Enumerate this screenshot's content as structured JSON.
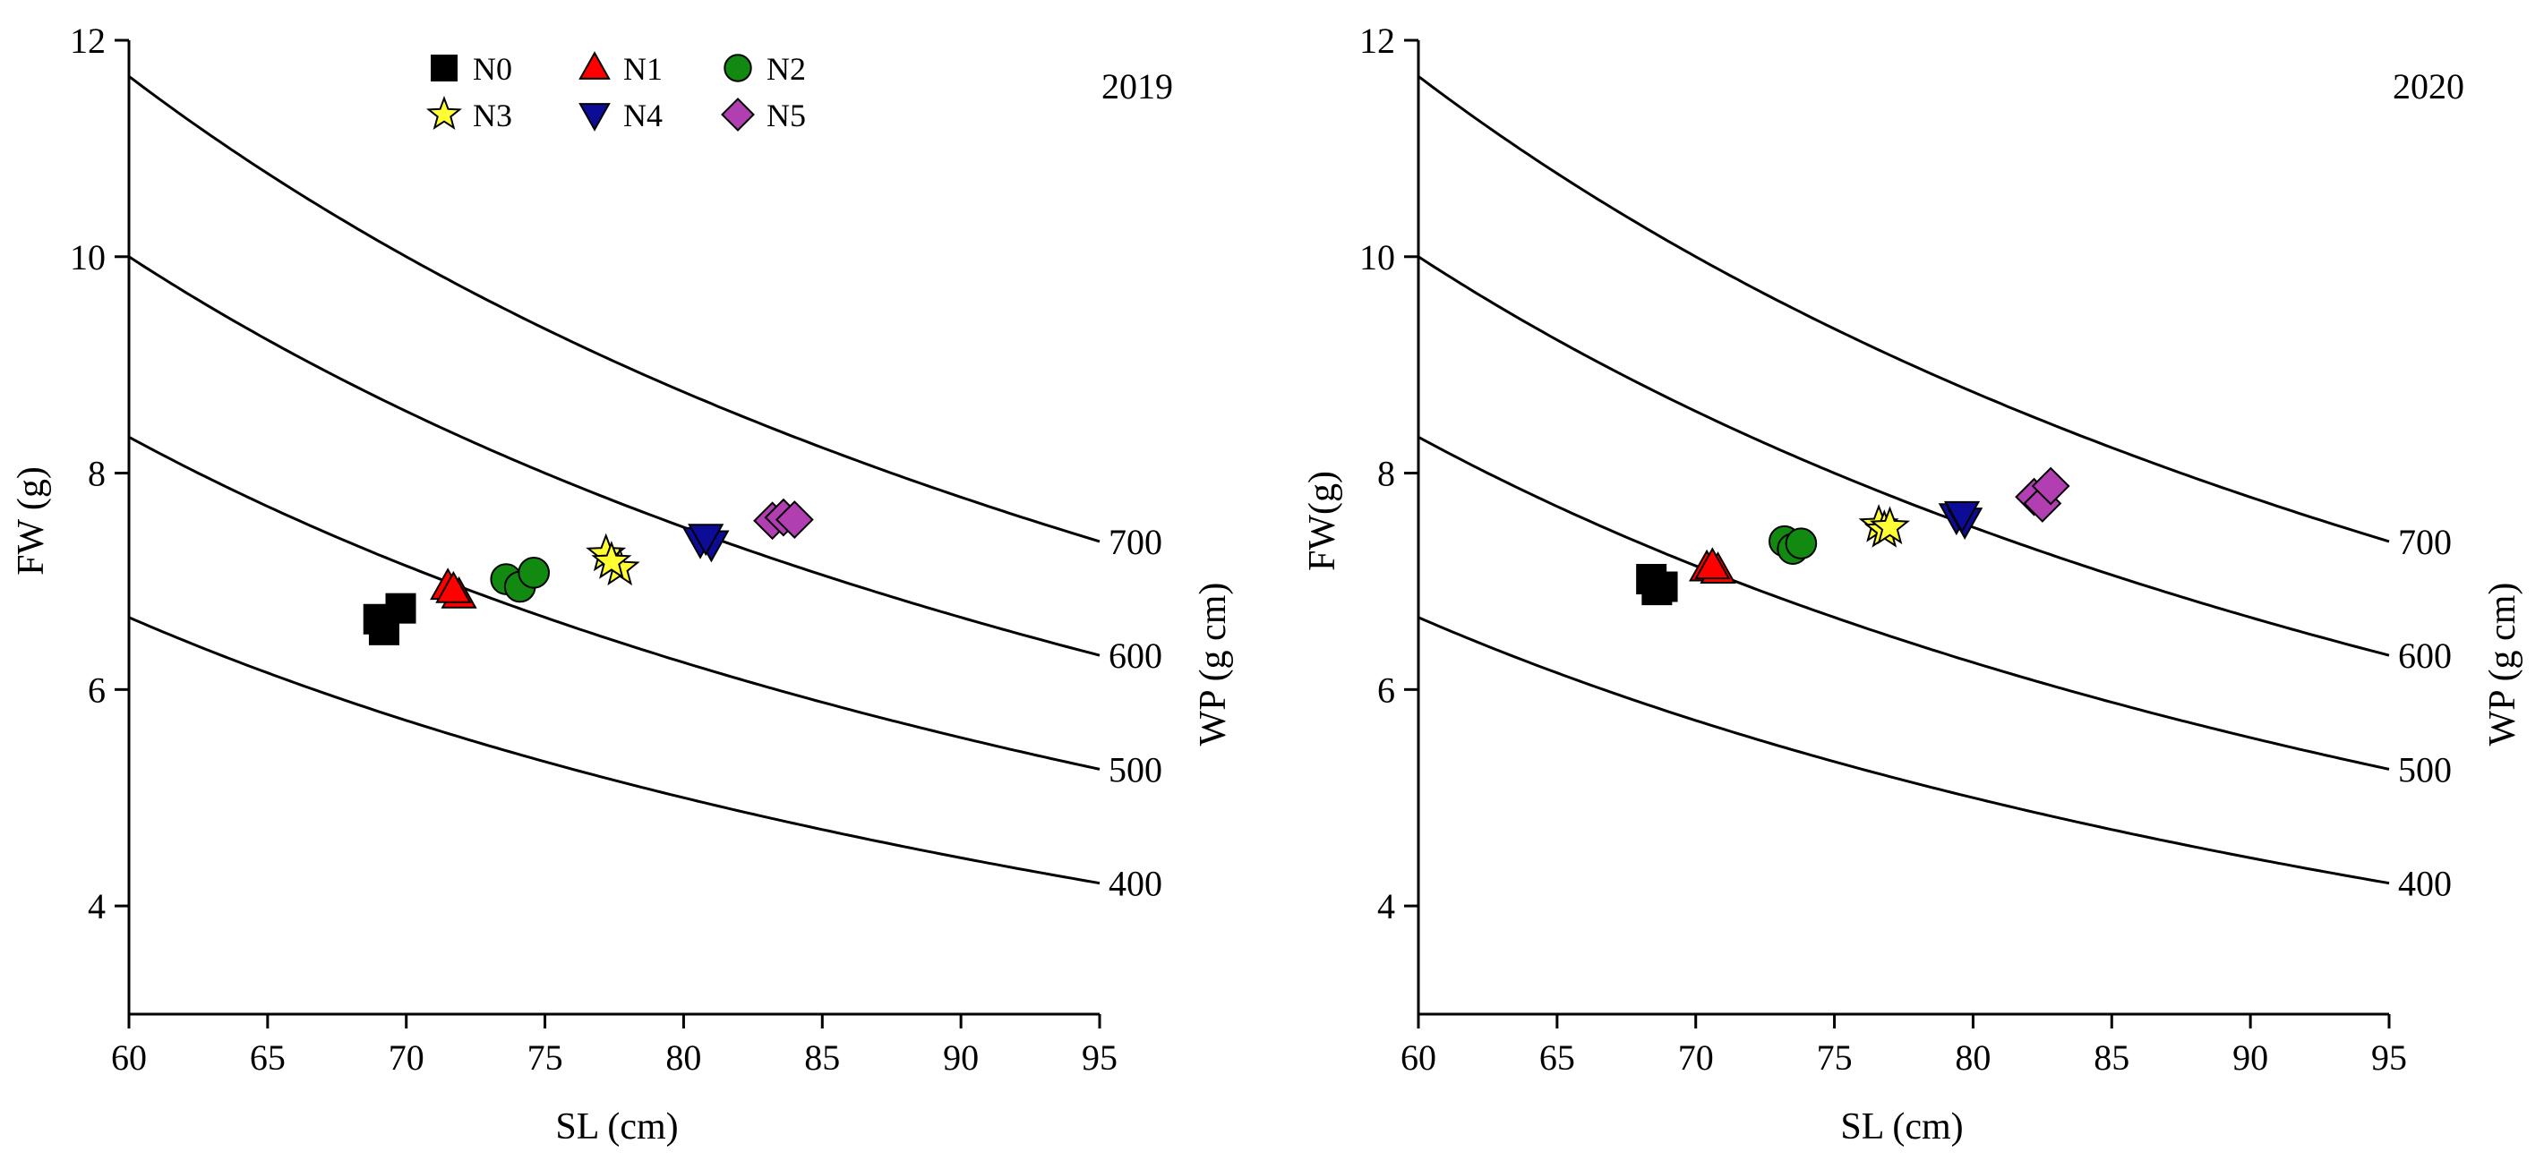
{
  "legend": {
    "entries": [
      {
        "label": "N0",
        "marker": "square",
        "color": "#000000"
      },
      {
        "label": "N1",
        "marker": "triangle-up",
        "color": "#ff0000"
      },
      {
        "label": "N2",
        "marker": "circle",
        "color": "#128a12"
      },
      {
        "label": "N3",
        "marker": "star",
        "color": "#ffff33"
      },
      {
        "label": "N4",
        "marker": "triangle-down",
        "color": "#0c0c96"
      },
      {
        "label": "N5",
        "marker": "diamond",
        "color": "#b23fb2"
      }
    ]
  },
  "chart_data": [
    {
      "type": "scatter",
      "panel_label": "2019",
      "xlabel": "SL (cm)",
      "ylabel": "FW (g)",
      "right_label": "WP (g cm)",
      "xlim": [
        60,
        95
      ],
      "ylim": [
        3,
        12
      ],
      "xticks": [
        "60",
        "65",
        "70",
        "75",
        "80",
        "85",
        "90",
        "95"
      ],
      "yticks": [
        "4",
        "6",
        "8",
        "10",
        "12"
      ],
      "isolines": [
        {
          "label": "400",
          "wp": 400
        },
        {
          "label": "500",
          "wp": 500
        },
        {
          "label": "600",
          "wp": 600
        },
        {
          "label": "700",
          "wp": 700
        }
      ],
      "series": [
        {
          "name": "N0",
          "points": [
            [
              69.0,
              6.65
            ],
            [
              69.2,
              6.55
            ],
            [
              69.8,
              6.75
            ]
          ]
        },
        {
          "name": "N1",
          "points": [
            [
              71.5,
              6.95
            ],
            [
              71.9,
              6.87
            ],
            [
              71.7,
              6.92
            ]
          ]
        },
        {
          "name": "N2",
          "points": [
            [
              73.6,
              7.02
            ],
            [
              74.1,
              6.95
            ],
            [
              74.6,
              7.08
            ]
          ]
        },
        {
          "name": "N3",
          "points": [
            [
              77.2,
              7.25
            ],
            [
              77.7,
              7.12
            ],
            [
              77.4,
              7.18
            ]
          ]
        },
        {
          "name": "N4",
          "points": [
            [
              80.6,
              7.38
            ],
            [
              81.0,
              7.35
            ],
            [
              80.8,
              7.41
            ]
          ]
        },
        {
          "name": "N5",
          "points": [
            [
              83.2,
              7.56
            ],
            [
              83.6,
              7.59
            ],
            [
              84.0,
              7.57
            ]
          ]
        }
      ]
    },
    {
      "type": "scatter",
      "panel_label": "2020",
      "xlabel": "SL (cm)",
      "ylabel": "FW(g)",
      "right_label": "WP (g cm)",
      "xlim": [
        60,
        95
      ],
      "ylim": [
        3,
        12
      ],
      "xticks": [
        "60",
        "65",
        "70",
        "75",
        "80",
        "85",
        "90",
        "95"
      ],
      "yticks": [
        "4",
        "6",
        "8",
        "10",
        "12"
      ],
      "isolines": [
        {
          "label": "400",
          "wp": 400
        },
        {
          "label": "500",
          "wp": 500
        },
        {
          "label": "600",
          "wp": 600
        },
        {
          "label": "700",
          "wp": 700
        }
      ],
      "series": [
        {
          "name": "N0",
          "points": [
            [
              68.4,
              7.02
            ],
            [
              68.6,
              6.92
            ],
            [
              68.8,
              6.95
            ]
          ]
        },
        {
          "name": "N1",
          "points": [
            [
              70.4,
              7.12
            ],
            [
              70.8,
              7.1
            ],
            [
              70.6,
              7.14
            ]
          ]
        },
        {
          "name": "N2",
          "points": [
            [
              73.2,
              7.37
            ],
            [
              73.5,
              7.3
            ],
            [
              73.8,
              7.35
            ]
          ]
        },
        {
          "name": "N3",
          "points": [
            [
              76.6,
              7.52
            ],
            [
              76.8,
              7.47
            ],
            [
              77.0,
              7.5
            ]
          ]
        },
        {
          "name": "N4",
          "points": [
            [
              79.4,
              7.6
            ],
            [
              79.7,
              7.56
            ],
            [
              79.6,
              7.62
            ]
          ]
        },
        {
          "name": "N5",
          "points": [
            [
              82.2,
              7.78
            ],
            [
              82.5,
              7.72
            ],
            [
              82.8,
              7.88
            ]
          ]
        }
      ]
    }
  ]
}
